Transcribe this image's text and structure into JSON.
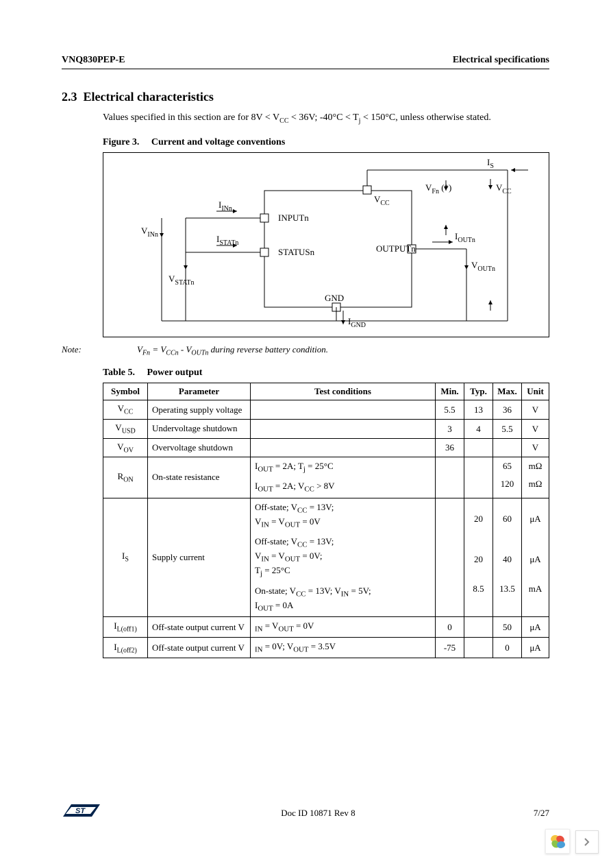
{
  "header": {
    "left": "VNQ830PEP-E",
    "right": "Electrical specifications"
  },
  "section": {
    "number": "2.3",
    "title": "Electrical characteristics"
  },
  "intro": {
    "prefix": "Values specified in this section are for 8V < V",
    "sub1": "CC",
    "mid1": " < 36V; -40°C < T",
    "sub2": "j",
    "suffix": " < 150°C, unless otherwise stated."
  },
  "figure": {
    "label": "Figure 3.",
    "title": "Current and voltage conventions",
    "labels": {
      "is": "I",
      "is_sub": "S",
      "vfn": "V",
      "vfn_sub": "Fn",
      "vfn_tail": " (*)",
      "vcc": "V",
      "vcc_sub": "CC",
      "vcc_pin": "V",
      "vcc_pin_sub": "CC",
      "inputn": "INPUTn",
      "iinn": "I",
      "iinn_sub": "INn",
      "vinn": "V",
      "vinn_sub": "INn",
      "statusn": "STATUSn",
      "istatn": "I",
      "istatn_sub": "STATn",
      "vstatn": "V",
      "vstatn_sub": "STATn",
      "outputn": "OUTPUTn",
      "ioutn": "I",
      "ioutn_sub": "OUTn",
      "voutn": "V",
      "voutn_sub": "OUTn",
      "gnd": "GND",
      "ignd": "I",
      "ignd_sub": "GND"
    },
    "style": {
      "border_color": "#000000",
      "line_color": "#000000",
      "line_width": 1,
      "pin_fill": "#ffffff",
      "pin_stroke": "#000000",
      "font_size": 13,
      "sub_font_size": 10
    }
  },
  "note": {
    "label": "Note:",
    "formula_pre": "V",
    "formula_sub1": "Fn",
    "formula_mid1": " = V",
    "formula_sub2": "CCn",
    "formula_mid2": "  - V",
    "formula_sub3": "OUTn",
    "formula_tail": "   during reverse battery condition."
  },
  "table": {
    "label": "Table 5.",
    "title": "Power output",
    "headers": [
      "Symbol",
      "Parameter",
      "Test conditions",
      "Min.",
      "Typ.",
      "Max.",
      "Unit"
    ],
    "rows": [
      {
        "symbol": {
          "t": "V",
          "s": "CC"
        },
        "param": "Operating supply voltage",
        "conds": [
          ""
        ],
        "min": [
          "5.5"
        ],
        "typ": [
          "13"
        ],
        "max": [
          "36"
        ],
        "unit": [
          "V"
        ]
      },
      {
        "symbol": {
          "t": "V",
          "s": "USD"
        },
        "param": "Undervoltage shutdown",
        "conds": [
          ""
        ],
        "min": [
          "3"
        ],
        "typ": [
          "4"
        ],
        "max": [
          "5.5"
        ],
        "unit": [
          "V"
        ]
      },
      {
        "symbol": {
          "t": "V",
          "s": "OV"
        },
        "param": "Overvoltage shutdown",
        "conds": [
          ""
        ],
        "min": [
          "36"
        ],
        "typ": [
          ""
        ],
        "max": [
          ""
        ],
        "unit": [
          "V"
        ]
      },
      {
        "symbol": {
          "t": "R",
          "s": "ON"
        },
        "param": "On-state resistance",
        "conds": [
          "I<sub>OUT</sub> = 2A; T<sub>j</sub> = 25°C",
          "I<sub>OUT</sub> = 2A; V<sub>CC</sub> > 8V"
        ],
        "min": [
          "",
          ""
        ],
        "typ": [
          "",
          ""
        ],
        "max": [
          "65",
          "120"
        ],
        "unit": [
          "mΩ",
          "mΩ"
        ]
      },
      {
        "symbol": {
          "t": "I",
          "s": "S"
        },
        "param": "Supply current",
        "conds": [
          "Off-state; V<sub>CC</sub> = 13V;\nV<sub>IN</sub> = V<sub>OUT</sub> = 0V",
          "Off-state; V<sub>CC</sub> = 13V;\nV<sub>IN</sub> = V<sub>OUT</sub> = 0V;\nT<sub>j</sub> = 25°C",
          "On-state; V<sub>CC</sub> = 13V; V<sub>IN</sub> = 5V;\nI<sub>OUT</sub> = 0A"
        ],
        "min": [
          "",
          "",
          ""
        ],
        "typ": [
          "20",
          "20",
          "8.5"
        ],
        "max": [
          "60",
          "40",
          "13.5"
        ],
        "unit": [
          "μA",
          "μA",
          "mA"
        ]
      },
      {
        "symbol": {
          "t": "I",
          "s": "L(off1)"
        },
        "param": "Off-state output current V",
        "conds": [
          "<sub>IN</sub> = V<sub>OUT</sub> = 0V"
        ],
        "min": [
          "0"
        ],
        "typ": [
          ""
        ],
        "max": [
          "50"
        ],
        "unit": [
          "μA"
        ]
      },
      {
        "symbol": {
          "t": "I",
          "s": "L(off2)"
        },
        "param": "Off-state output current V",
        "conds": [
          "<sub>IN</sub> = 0V; V<sub>OUT</sub> = 3.5V"
        ],
        "min": [
          "-75"
        ],
        "typ": [
          ""
        ],
        "max": [
          "0"
        ],
        "unit": [
          "μA"
        ]
      }
    ],
    "style": {
      "border_color": "#000000",
      "header_bg": "#ffffff",
      "font_size": 13
    }
  },
  "footer": {
    "doc": "Doc ID 10871 Rev 8",
    "page": "7/27"
  },
  "logo": {
    "fill1": "#03234b",
    "fill2": "#ffffff"
  },
  "nav_icon": {
    "petal_colors": [
      "#f4c542",
      "#e94f3f",
      "#8bc34a",
      "#4a9fd8"
    ]
  }
}
